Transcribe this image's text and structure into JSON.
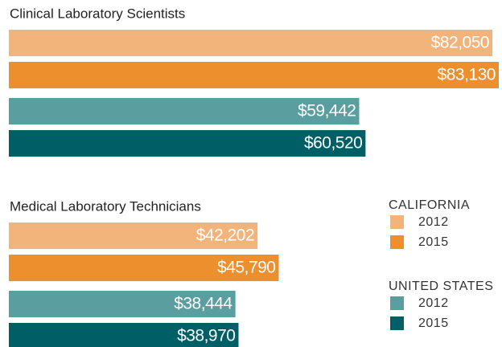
{
  "chart_data": [
    {
      "type": "bar",
      "orientation": "horizontal",
      "title": "Clinical Laboratory Scientists",
      "series": [
        {
          "color": "#f2b47a",
          "values": [
            82050
          ],
          "value_labels": [
            "$82,050"
          ]
        },
        {
          "color": "#ec8f2c",
          "values": [
            83130
          ],
          "value_labels": [
            "$83,130"
          ]
        },
        {
          "color": "#5a9ea0",
          "values": [
            59442
          ],
          "value_labels": [
            "$59,442"
          ]
        },
        {
          "color": "#005f66",
          "values": [
            60520
          ],
          "value_labels": [
            "$60,520"
          ]
        }
      ]
    },
    {
      "type": "bar",
      "orientation": "horizontal",
      "title": "Medical Laboratory Technicians",
      "series": [
        {
          "color": "#f2b47a",
          "values": [
            42202
          ],
          "value_labels": [
            "$42,202"
          ]
        },
        {
          "color": "#ec8f2c",
          "values": [
            45790
          ],
          "value_labels": [
            "$45,790"
          ]
        },
        {
          "color": "#5a9ea0",
          "values": [
            38444
          ],
          "value_labels": [
            "$38,444"
          ]
        },
        {
          "color": "#005f66",
          "values": [
            38970
          ],
          "value_labels": [
            "$38,970"
          ]
        }
      ]
    }
  ],
  "legend": [
    {
      "title": "CALIFORNIA",
      "items": [
        {
          "name": "2012",
          "color": "#f2b47a"
        },
        {
          "name": "2015",
          "color": "#ec8f2c"
        }
      ]
    },
    {
      "title": "UNITED STATES",
      "items": [
        {
          "name": "2012",
          "color": "#5a9ea0"
        },
        {
          "name": "2015",
          "color": "#005f66"
        }
      ]
    }
  ]
}
